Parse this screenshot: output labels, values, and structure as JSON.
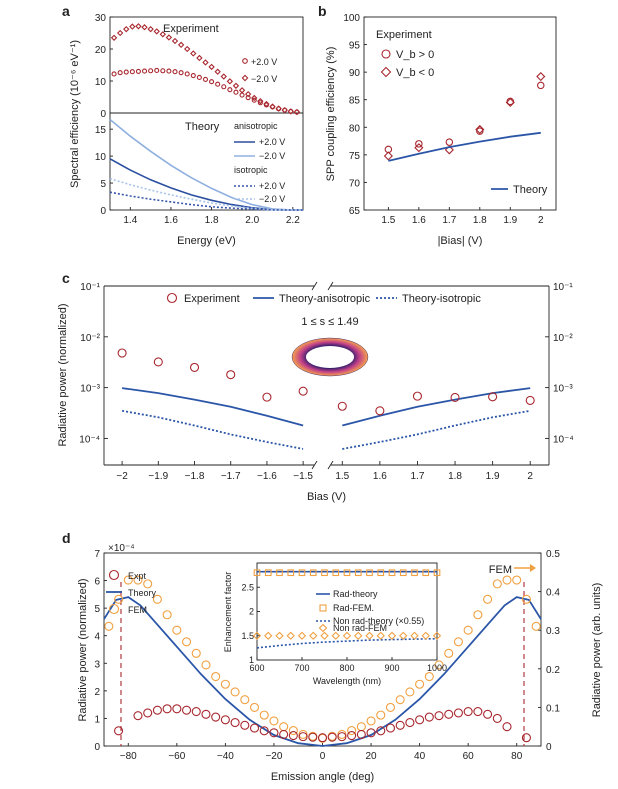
{
  "colors": {
    "expt": "#a8272f",
    "aniso_pos": "#2b4fa0",
    "aniso_neg": "#8fb0e0",
    "iso_pos": "#3555a8",
    "iso_neg": "#a9c3ea",
    "fem": "#f0a040",
    "theory": "#2b56a8"
  },
  "chart_data": [
    {
      "panel": "a",
      "type": "scatter",
      "subpanel": "experiment",
      "label": "Experiment",
      "ylabel": "Spectral efficiency (10⁻⁶ eV⁻¹)",
      "xlim": [
        1.3,
        2.25
      ],
      "ylim": [
        0,
        30
      ],
      "yticks": [
        "0",
        "10",
        "20",
        "30"
      ],
      "series": [
        {
          "name": "+2.0 V",
          "marker": "circle",
          "x": [
            1.32,
            1.35,
            1.38,
            1.41,
            1.44,
            1.47,
            1.5,
            1.53,
            1.56,
            1.59,
            1.62,
            1.65,
            1.68,
            1.71,
            1.74,
            1.77,
            1.8,
            1.83,
            1.86,
            1.89,
            1.92,
            1.95,
            1.98,
            2.01,
            2.04,
            2.07,
            2.1,
            2.13,
            2.16,
            2.19,
            2.22
          ],
          "y": [
            12.2,
            12.6,
            12.8,
            12.9,
            13.0,
            13.1,
            13.2,
            13.3,
            13.2,
            13.1,
            12.9,
            12.6,
            12.2,
            11.7,
            11.1,
            10.5,
            9.8,
            9.0,
            8.2,
            7.3,
            6.5,
            5.6,
            4.8,
            4.0,
            3.2,
            2.5,
            1.9,
            1.3,
            0.9,
            0.5,
            0.3
          ]
        },
        {
          "name": "−2.0 V",
          "marker": "diamond",
          "x": [
            1.32,
            1.35,
            1.38,
            1.41,
            1.44,
            1.47,
            1.5,
            1.53,
            1.56,
            1.59,
            1.62,
            1.65,
            1.68,
            1.71,
            1.74,
            1.77,
            1.8,
            1.83,
            1.86,
            1.89,
            1.92,
            1.95,
            1.98,
            2.01,
            2.04,
            2.07,
            2.1,
            2.13,
            2.16,
            2.19,
            2.22
          ],
          "y": [
            23.5,
            25.0,
            26.2,
            27.0,
            27.1,
            26.8,
            26.2,
            25.5,
            24.6,
            23.6,
            22.5,
            21.3,
            20.0,
            18.6,
            17.2,
            15.8,
            14.4,
            12.9,
            11.4,
            9.9,
            8.5,
            7.1,
            5.9,
            4.7,
            3.7,
            2.8,
            2.0,
            1.4,
            0.9,
            0.5,
            0.3
          ]
        }
      ]
    },
    {
      "panel": "a",
      "type": "line",
      "subpanel": "theory",
      "label": "Theory",
      "xlabel": "Energy (eV)",
      "xlim": [
        1.3,
        2.25
      ],
      "xticks": [
        "1.4",
        "1.6",
        "1.8",
        "2.0",
        "2.2"
      ],
      "ylim": [
        0,
        18
      ],
      "yticks": [
        "0",
        "5",
        "10",
        "15"
      ],
      "groups": [
        "anisotropic",
        "isotropic"
      ],
      "series": [
        {
          "name": "+2.0 V",
          "group": "anisotropic",
          "style": "solid",
          "x": [
            1.3,
            1.4,
            1.5,
            1.6,
            1.7,
            1.8,
            1.9,
            2.0,
            2.1,
            2.2,
            2.25
          ],
          "y": [
            9.5,
            7.4,
            5.6,
            4.1,
            2.8,
            1.8,
            1.0,
            0.4,
            0.05,
            0,
            0
          ]
        },
        {
          "name": "−2.0 V",
          "group": "anisotropic",
          "style": "solid",
          "x": [
            1.3,
            1.4,
            1.5,
            1.6,
            1.7,
            1.8,
            1.9,
            2.0,
            2.1,
            2.2,
            2.25
          ],
          "y": [
            16.8,
            13.7,
            10.9,
            8.3,
            6.0,
            4.0,
            2.3,
            1.0,
            0.2,
            0,
            0
          ]
        },
        {
          "name": "+2.0 V",
          "group": "isotropic",
          "style": "dotted",
          "x": [
            1.3,
            1.4,
            1.5,
            1.6,
            1.7,
            1.8,
            1.9,
            2.0,
            2.1,
            2.2,
            2.25
          ],
          "y": [
            3.3,
            2.6,
            2.0,
            1.5,
            1.0,
            0.6,
            0.35,
            0.15,
            0.02,
            0,
            0
          ]
        },
        {
          "name": "−2.0 V",
          "group": "isotropic",
          "style": "dotted",
          "x": [
            1.3,
            1.4,
            1.5,
            1.6,
            1.7,
            1.8,
            1.9,
            2.0,
            2.1,
            2.2,
            2.25
          ],
          "y": [
            5.8,
            4.7,
            3.7,
            2.8,
            2.0,
            1.3,
            0.75,
            0.3,
            0.05,
            0,
            0
          ]
        }
      ]
    },
    {
      "panel": "b",
      "type": "scatter",
      "legend_title": "Experiment",
      "xlabel": "|Bias| (V)",
      "ylabel": "SPP coupling efficiency (%)",
      "xlim": [
        1.42,
        2.05
      ],
      "xticks": [
        "1.5",
        "1.6",
        "1.7",
        "1.8",
        "1.9",
        "2"
      ],
      "ylim": [
        65,
        100
      ],
      "yticks": [
        "65",
        "70",
        "75",
        "80",
        "85",
        "90",
        "95",
        "100"
      ],
      "series": [
        {
          "name": "V_b > 0",
          "marker": "circle",
          "x": [
            1.5,
            1.6,
            1.7,
            1.8,
            1.9,
            2.0
          ],
          "y": [
            76.0,
            77.0,
            77.3,
            79.3,
            84.7,
            87.6
          ]
        },
        {
          "name": "V_b < 0",
          "marker": "diamond",
          "x": [
            1.5,
            1.6,
            1.7,
            1.8,
            1.9,
            2.0
          ],
          "y": [
            74.8,
            76.3,
            75.9,
            79.6,
            84.5,
            89.2
          ]
        },
        {
          "name": "Theory",
          "marker": "line",
          "x": [
            1.5,
            1.6,
            1.7,
            1.8,
            1.9,
            2.0
          ],
          "y": [
            73.9,
            75.2,
            76.4,
            77.4,
            78.3,
            79.0
          ]
        }
      ]
    },
    {
      "panel": "c",
      "type": "scatter",
      "xlabel": "Bias (V)",
      "ylabel": "Radiative power (normalized)",
      "yscale": "log",
      "ylim": [
        3e-05,
        0.1
      ],
      "yticks": [
        "10⁻⁴",
        "10⁻³",
        "10⁻²",
        "10⁻¹"
      ],
      "xticks_left": [
        "−2",
        "−1.9",
        "−1.8",
        "−1.7",
        "−1.6",
        "−1.5"
      ],
      "xticks_right": [
        "1.5",
        "1.6",
        "1.7",
        "1.8",
        "1.9",
        "2"
      ],
      "annotation": "1 ≤ s ≤ 1.49",
      "series": [
        {
          "name": "Experiment",
          "marker": "circle",
          "x": [
            -2.0,
            -1.9,
            -1.8,
            -1.7,
            -1.6,
            -1.5,
            1.5,
            1.6,
            1.7,
            1.8,
            1.9,
            2.0
          ],
          "y": [
            0.0048,
            0.0032,
            0.0025,
            0.0018,
            0.00065,
            0.00085,
            0.00043,
            0.00035,
            0.00068,
            0.00064,
            0.00066,
            0.00056
          ]
        },
        {
          "name": "Theory-anisotropic",
          "marker": "solid",
          "x": [
            -2.0,
            -1.9,
            -1.8,
            -1.7,
            -1.6,
            -1.5,
            1.5,
            1.6,
            1.7,
            1.8,
            1.9,
            2.0
          ],
          "y": [
            0.00098,
            0.00078,
            0.00058,
            0.00042,
            0.00028,
            0.00018,
            0.00018,
            0.00028,
            0.00042,
            0.00058,
            0.00078,
            0.00098
          ]
        },
        {
          "name": "Theory-isotropic",
          "marker": "dotted",
          "x": [
            -2.0,
            -1.9,
            -1.8,
            -1.7,
            -1.6,
            -1.5,
            1.5,
            1.6,
            1.7,
            1.8,
            1.9,
            2.0
          ],
          "y": [
            0.00035,
            0.00026,
            0.00018,
            0.00012,
            8.5e-05,
            6.2e-05,
            6.2e-05,
            8.5e-05,
            0.00012,
            0.00018,
            0.00026,
            0.00035
          ]
        }
      ]
    },
    {
      "panel": "d",
      "type": "scatter",
      "xlabel": "Emission angle (deg)",
      "ylabel": "Radiative power (normalized)",
      "ylabel_right": "Radiative power (arb. units)",
      "y_multiplier": "×10⁻⁴",
      "xlim": [
        -90,
        90
      ],
      "xticks": [
        "−80",
        "−60",
        "−40",
        "−20",
        "0",
        "20",
        "40",
        "60",
        "80"
      ],
      "ylim": [
        0,
        7
      ],
      "yticks": [
        "0",
        "1",
        "2",
        "3",
        "4",
        "5",
        "6",
        "7"
      ],
      "ylim_right": [
        0,
        0.5
      ],
      "yticks_right": [
        "0",
        "0.1",
        "0.2",
        "0.3",
        "0.4",
        "0.5"
      ],
      "fem_label": "FEM",
      "series": [
        {
          "name": "Expt",
          "marker": "circle",
          "axis": "left",
          "x": [
            -84,
            -76,
            -72,
            -68,
            -64,
            -60,
            -56,
            -52,
            -48,
            -44,
            -40,
            -36,
            -32,
            -28,
            -24,
            -20,
            -16,
            -12,
            -8,
            -4,
            0,
            4,
            8,
            12,
            16,
            20,
            24,
            28,
            32,
            36,
            40,
            44,
            48,
            52,
            56,
            60,
            64,
            68,
            72,
            76,
            84
          ],
          "y": [
            0.55,
            1.1,
            1.2,
            1.3,
            1.35,
            1.35,
            1.3,
            1.25,
            1.15,
            1.05,
            0.95,
            0.85,
            0.75,
            0.65,
            0.55,
            0.48,
            0.42,
            0.38,
            0.34,
            0.32,
            0.3,
            0.32,
            0.34,
            0.38,
            0.42,
            0.48,
            0.55,
            0.65,
            0.75,
            0.85,
            0.95,
            1.05,
            1.1,
            1.15,
            1.2,
            1.25,
            1.25,
            1.15,
            1.0,
            0.7,
            0.3
          ]
        },
        {
          "name": "Theory",
          "marker": "solid",
          "axis": "left",
          "x": [
            -90,
            -85,
            -80,
            -75,
            -70,
            -60,
            -50,
            -40,
            -30,
            -20,
            -10,
            0,
            10,
            20,
            30,
            40,
            50,
            60,
            70,
            75,
            80,
            85,
            90
          ],
          "y": [
            4.6,
            5.3,
            5.4,
            5.1,
            4.6,
            3.6,
            2.6,
            1.7,
            0.95,
            0.4,
            0.1,
            0.0,
            0.1,
            0.4,
            0.95,
            1.7,
            2.6,
            3.6,
            4.6,
            5.1,
            5.4,
            5.3,
            4.6
          ]
        },
        {
          "name": "FEM",
          "marker": "circle",
          "axis": "right",
          "x": [
            -88,
            -84,
            -80,
            -76,
            -72,
            -68,
            -64,
            -60,
            -56,
            -52,
            -48,
            -44,
            -40,
            -36,
            -32,
            -28,
            -24,
            -20,
            -16,
            -12,
            -8,
            -4,
            0,
            4,
            8,
            12,
            16,
            20,
            24,
            28,
            32,
            36,
            40,
            44,
            48,
            52,
            56,
            60,
            64,
            68,
            72,
            76,
            80,
            84,
            88
          ],
          "y": [
            0.31,
            0.38,
            0.43,
            0.43,
            0.42,
            0.38,
            0.34,
            0.3,
            0.27,
            0.24,
            0.21,
            0.18,
            0.16,
            0.14,
            0.12,
            0.1,
            0.08,
            0.065,
            0.05,
            0.04,
            0.03,
            0.025,
            0.02,
            0.025,
            0.03,
            0.04,
            0.05,
            0.065,
            0.08,
            0.1,
            0.12,
            0.14,
            0.16,
            0.18,
            0.21,
            0.24,
            0.27,
            0.3,
            0.34,
            0.38,
            0.42,
            0.43,
            0.43,
            0.38,
            0.31
          ]
        }
      ],
      "inset": {
        "xlabel": "Wavelength (nm)",
        "ylabel": "Enhancement factor",
        "xlim": [
          600,
          1000
        ],
        "xticks": [
          "600",
          "700",
          "800",
          "900",
          "1000"
        ],
        "ylim": [
          1,
          3
        ],
        "yticks": [
          "1",
          "1.5",
          "2",
          "2.5"
        ],
        "series": [
          {
            "name": "Rad-theory",
            "marker": "solid",
            "x": [
              600,
              1000
            ],
            "y": [
              2.82,
              2.82
            ]
          },
          {
            "name": "Rad-FEM.",
            "marker": "square",
            "x": [
              600,
              625,
              650,
              675,
              700,
              725,
              750,
              775,
              800,
              825,
              850,
              875,
              900,
              925,
              950,
              975,
              1000
            ],
            "y": [
              2.8,
              2.8,
              2.8,
              2.8,
              2.8,
              2.8,
              2.8,
              2.8,
              2.8,
              2.8,
              2.8,
              2.8,
              2.8,
              2.8,
              2.8,
              2.8,
              2.8
            ]
          },
          {
            "name": "Non rad-theory (×0.55)",
            "marker": "dotted",
            "x": [
              600,
              650,
              700,
              750,
              800,
              850,
              900,
              950,
              1000
            ],
            "y": [
              1.25,
              1.3,
              1.34,
              1.37,
              1.39,
              1.41,
              1.42,
              1.43,
              1.44
            ]
          },
          {
            "name": "Non rad-FEM",
            "marker": "diamond",
            "x": [
              600,
              625,
              650,
              675,
              700,
              725,
              750,
              775,
              800,
              825,
              850,
              875,
              900,
              925,
              950,
              975,
              1000
            ],
            "y": [
              1.5,
              1.5,
              1.5,
              1.5,
              1.5,
              1.5,
              1.5,
              1.5,
              1.5,
              1.5,
              1.5,
              1.5,
              1.5,
              1.5,
              1.5,
              1.5,
              1.5
            ]
          }
        ]
      }
    }
  ]
}
